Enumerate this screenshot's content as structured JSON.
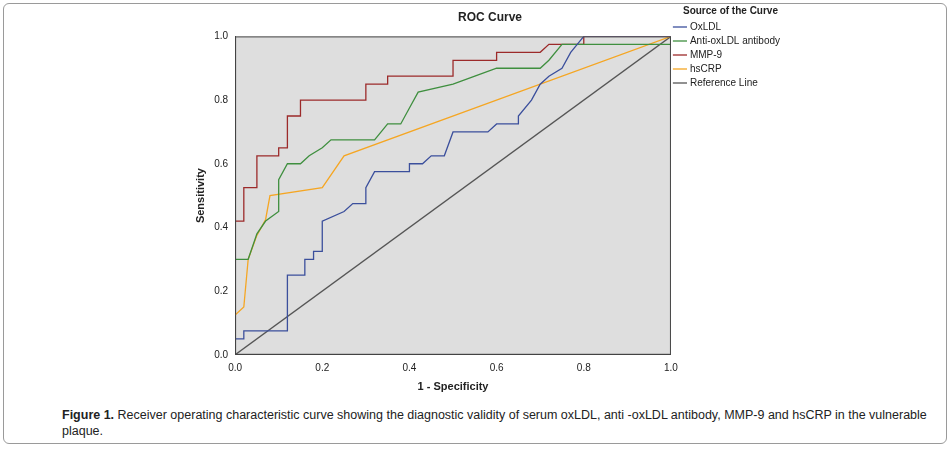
{
  "chart_data": {
    "type": "line",
    "title": "ROC Curve",
    "xlabel": "1 - Specificity",
    "ylabel": "Sensitivity",
    "legend_title": "Source of the Curve",
    "legend": "upper right",
    "grid": false,
    "xlim": [
      0,
      1
    ],
    "ylim": [
      0,
      1
    ],
    "xticks": [
      {
        "value": 0,
        "label": "0.0"
      },
      {
        "value": 0.2,
        "label": "0.2"
      },
      {
        "value": 0.4,
        "label": "0.4"
      },
      {
        "value": 0.6,
        "label": "0.6"
      },
      {
        "value": 0.8,
        "label": "0.8"
      },
      {
        "value": 1,
        "label": "1.0"
      }
    ],
    "yticks": [
      {
        "value": 0,
        "label": "0.0"
      },
      {
        "value": 0.2,
        "label": "0.2"
      },
      {
        "value": 0.4,
        "label": "0.4"
      },
      {
        "value": 0.6,
        "label": "0.6"
      },
      {
        "value": 0.8,
        "label": "0.8"
      },
      {
        "value": 1,
        "label": "1.0"
      }
    ],
    "series": [
      {
        "name": "OxLDL",
        "color": "#3b4f9c",
        "x": [
          0,
          0.02,
          0.02,
          0.12,
          0.12,
          0.16,
          0.16,
          0.18,
          0.18,
          0.2,
          0.2,
          0.25,
          0.27,
          0.3,
          0.3,
          0.32,
          0.4,
          0.4,
          0.43,
          0.45,
          0.48,
          0.5,
          0.58,
          0.6,
          0.65,
          0.65,
          0.68,
          0.7,
          0.72,
          0.75,
          0.77,
          0.8,
          1.0
        ],
        "values": [
          0.05,
          0.05,
          0.075,
          0.075,
          0.25,
          0.25,
          0.3,
          0.3,
          0.325,
          0.325,
          0.42,
          0.45,
          0.475,
          0.475,
          0.525,
          0.575,
          0.575,
          0.6,
          0.6,
          0.625,
          0.625,
          0.7,
          0.7,
          0.725,
          0.725,
          0.75,
          0.8,
          0.85,
          0.875,
          0.9,
          0.95,
          1.0,
          1.0
        ]
      },
      {
        "name": "Anti-oxLDL antibody",
        "color": "#3f8f3f",
        "x": [
          0,
          0.03,
          0.05,
          0.07,
          0.1,
          0.1,
          0.12,
          0.15,
          0.17,
          0.2,
          0.22,
          0.32,
          0.35,
          0.38,
          0.4,
          0.42,
          0.5,
          0.55,
          0.6,
          0.7,
          0.72,
          0.75,
          1.0,
          1.0
        ],
        "values": [
          0.3,
          0.3,
          0.38,
          0.42,
          0.45,
          0.55,
          0.6,
          0.6,
          0.625,
          0.65,
          0.675,
          0.675,
          0.725,
          0.725,
          0.775,
          0.825,
          0.85,
          0.875,
          0.9,
          0.9,
          0.925,
          0.975,
          0.975,
          1.0
        ]
      },
      {
        "name": "MMP-9",
        "color": "#9c2a2a",
        "x": [
          0,
          0.02,
          0.02,
          0.05,
          0.05,
          0.1,
          0.1,
          0.12,
          0.12,
          0.15,
          0.15,
          0.3,
          0.3,
          0.35,
          0.35,
          0.5,
          0.5,
          0.6,
          0.6,
          0.7,
          0.72,
          0.8,
          0.8,
          1.0
        ],
        "values": [
          0.42,
          0.42,
          0.525,
          0.525,
          0.625,
          0.625,
          0.65,
          0.65,
          0.75,
          0.75,
          0.8,
          0.8,
          0.85,
          0.85,
          0.875,
          0.875,
          0.925,
          0.925,
          0.95,
          0.95,
          0.975,
          0.975,
          1.0,
          1.0
        ]
      },
      {
        "name": "hsCRP",
        "color": "#f5a623",
        "x": [
          0,
          0.02,
          0.03,
          0.05,
          0.07,
          0.08,
          0.2,
          0.25,
          1.0
        ],
        "values": [
          0.125,
          0.15,
          0.3,
          0.375,
          0.425,
          0.5,
          0.525,
          0.625,
          1.0
        ]
      },
      {
        "name": "Reference Line",
        "color": "#555555",
        "x": [
          0,
          1.0
        ],
        "values": [
          0,
          1.0
        ]
      }
    ]
  },
  "caption": {
    "label": "Figure 1.",
    "text": "Receiver operating characteristic curve showing the diagnostic validity of serum oxLDL, anti -oxLDL antibody, MMP-9 and hsCRP in the vulnerable plaque."
  }
}
